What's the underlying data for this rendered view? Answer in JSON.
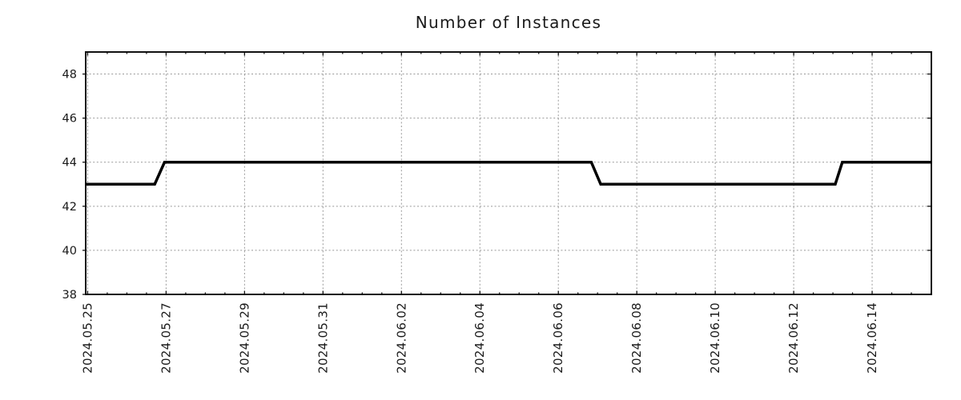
{
  "chart_data": {
    "type": "line",
    "title": "Number of Instances",
    "grid": true,
    "legend": "none",
    "colors": {
      "line": "#000000",
      "grid": "#999999",
      "axis": "#111111",
      "tick": "#111111",
      "label_text": "#1a1a1a"
    },
    "x_axis": {
      "day_zero": "2024.05.25",
      "range_days": [
        -0.05,
        21.51
      ],
      "major_tick_step_days": 2,
      "minor_tick_step_days": 0.5,
      "tick_label_rotation_deg": -90,
      "ticks": [
        {
          "day": 0,
          "label": "2024.05.25"
        },
        {
          "day": 2,
          "label": "2024.05.27"
        },
        {
          "day": 4,
          "label": "2024.05.29"
        },
        {
          "day": 6,
          "label": "2024.05.31"
        },
        {
          "day": 8,
          "label": "2024.06.02"
        },
        {
          "day": 10,
          "label": "2024.06.04"
        },
        {
          "day": 12,
          "label": "2024.06.06"
        },
        {
          "day": 14,
          "label": "2024.06.08"
        },
        {
          "day": 16,
          "label": "2024.06.10"
        },
        {
          "day": 18,
          "label": "2024.06.12"
        },
        {
          "day": 20,
          "label": "2024.06.14"
        }
      ]
    },
    "y_axis": {
      "range": [
        38,
        49
      ],
      "ticks": [
        38,
        40,
        42,
        44,
        46,
        48
      ]
    },
    "series": [
      {
        "name": "instances",
        "color": "#000000",
        "stroke_width": 3.5,
        "points_day_value": [
          [
            -0.05,
            43
          ],
          [
            1.71,
            43
          ],
          [
            1.96,
            44
          ],
          [
            12.84,
            44
          ],
          [
            13.08,
            43
          ],
          [
            19.06,
            43
          ],
          [
            19.24,
            44
          ],
          [
            21.51,
            44
          ]
        ],
        "segments": [
          {
            "from": "2024.05.25",
            "to": "2024.05.26 (evening)",
            "value": 43
          },
          {
            "from": "2024.05.27",
            "to": "2024.06.06 (late)",
            "value": 44
          },
          {
            "from": "2024.06.07",
            "to": "2024.06.13 (early)",
            "value": 43
          },
          {
            "from": "2024.06.13",
            "to": "2024.06.15 (end of range)",
            "value": 44
          }
        ]
      }
    ]
  }
}
